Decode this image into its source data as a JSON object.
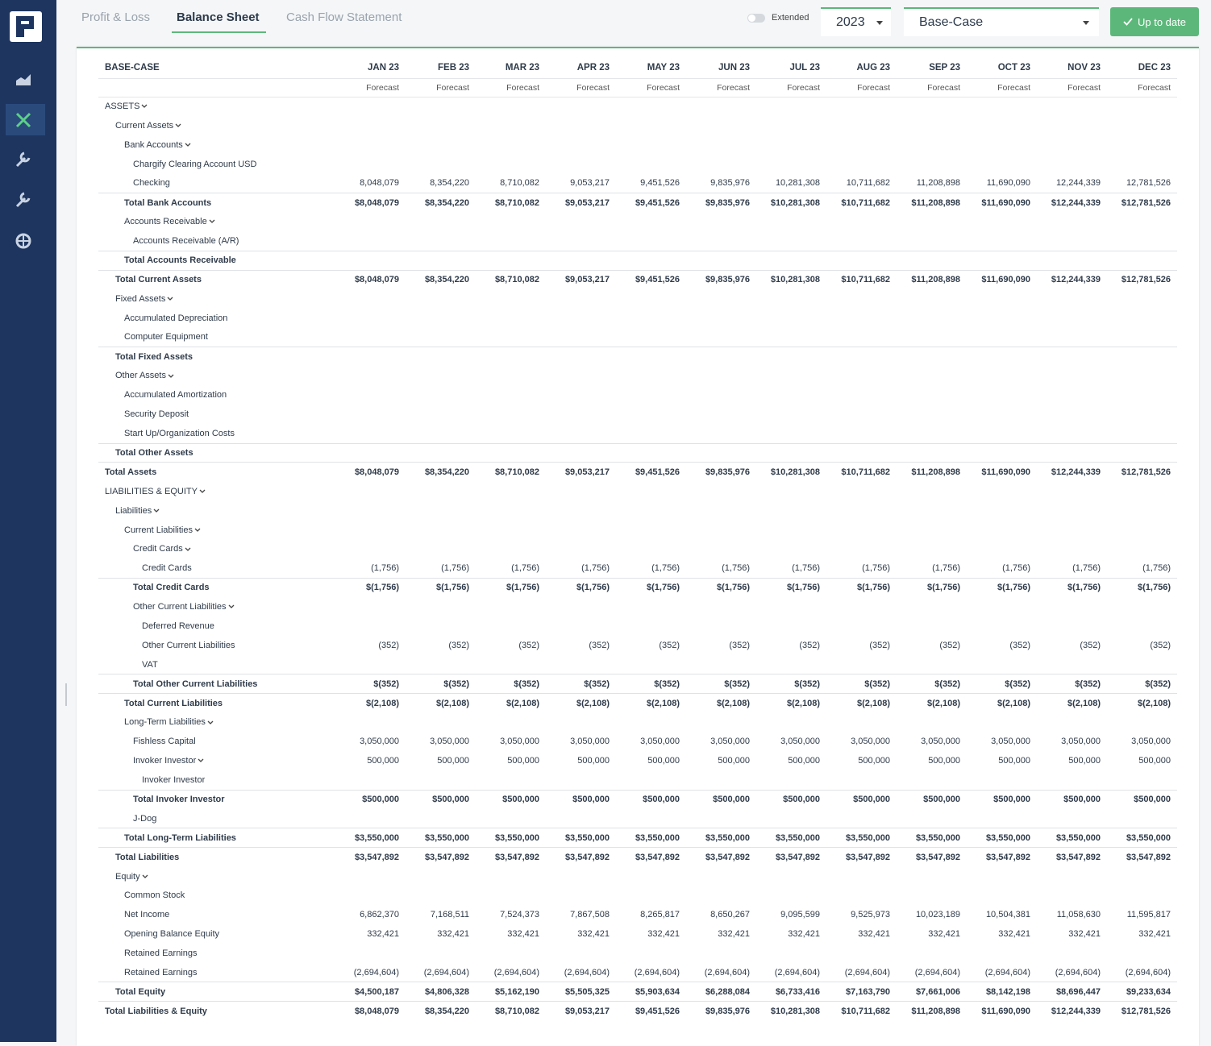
{
  "toolbar": {
    "tabs": [
      "Profit & Loss",
      "Balance Sheet",
      "Cash Flow Statement"
    ],
    "toggle_label": "Extended",
    "year": "2023",
    "scenario": "Base-Case",
    "status_button": "Up to date"
  },
  "table": {
    "corner": "BASE-CASE",
    "months": [
      "JAN 23",
      "FEB 23",
      "MAR 23",
      "APR 23",
      "MAY 23",
      "JUN 23",
      "JUL 23",
      "AUG 23",
      "SEP 23",
      "OCT 23",
      "NOV 23",
      "DEC 23"
    ],
    "subheads": [
      "Forecast",
      "Forecast",
      "Forecast",
      "Forecast",
      "Forecast",
      "Forecast",
      "Forecast",
      "Forecast",
      "Forecast",
      "Forecast",
      "Forecast",
      "Forecast"
    ],
    "rows": [
      {
        "label": "ASSETS",
        "rows": [
          {
            "label": "Current Assets",
            "rows": [
              {
                "label": "Bank Accounts",
                "rows": [
                  {
                    "label": "Chargify Clearing Account USD"
                  },
                  {
                    "label": "Checking",
                    "values": [
                      "8,048,079",
                      "8,354,220",
                      "8,710,082",
                      "9,053,217",
                      "9,451,526",
                      "9,835,976",
                      "10,281,308",
                      "10,711,682",
                      "11,208,898",
                      "11,690,090",
                      "12,244,339",
                      "12,781,526"
                    ]
                  }
                ],
                "total": {
                  "label": "Total Bank Accounts",
                  "values": [
                    "$8,048,079",
                    "$8,354,220",
                    "$8,710,082",
                    "$9,053,217",
                    "$9,451,526",
                    "$9,835,976",
                    "$10,281,308",
                    "$10,711,682",
                    "$11,208,898",
                    "$11,690,090",
                    "$12,244,339",
                    "$12,781,526"
                  ]
                }
              },
              {
                "label": "Accounts Receivable",
                "rows": [
                  {
                    "label": "Accounts Receivable (A/R)"
                  }
                ],
                "total": {
                  "label": "Total Accounts Receivable"
                }
              }
            ],
            "total": {
              "label": "Total Current Assets",
              "values": [
                "$8,048,079",
                "$8,354,220",
                "$8,710,082",
                "$9,053,217",
                "$9,451,526",
                "$9,835,976",
                "$10,281,308",
                "$10,711,682",
                "$11,208,898",
                "$11,690,090",
                "$12,244,339",
                "$12,781,526"
              ]
            }
          },
          {
            "label": "Fixed Assets",
            "rows": [
              {
                "label": "Accumulated Depreciation"
              },
              {
                "label": "Computer Equipment"
              }
            ],
            "total": {
              "label": "Total Fixed Assets"
            }
          },
          {
            "label": "Other Assets",
            "rows": [
              {
                "label": "Accumulated Amortization"
              },
              {
                "label": "Security Deposit"
              },
              {
                "label": "Start Up/Organization Costs"
              }
            ],
            "total": {
              "label": "Total Other Assets"
            }
          }
        ],
        "total": {
          "label": "Total Assets",
          "values": [
            "$8,048,079",
            "$8,354,220",
            "$8,710,082",
            "$9,053,217",
            "$9,451,526",
            "$9,835,976",
            "$10,281,308",
            "$10,711,682",
            "$11,208,898",
            "$11,690,090",
            "$12,244,339",
            "$12,781,526"
          ]
        }
      },
      {
        "label": "LIABILITIES & EQUITY",
        "rows": [
          {
            "label": "Liabilities",
            "rows": [
              {
                "label": "Current Liabilities",
                "rows": [
                  {
                    "label": "Credit Cards",
                    "rows": [
                      {
                        "label": "Credit Cards",
                        "values": [
                          "(1,756)",
                          "(1,756)",
                          "(1,756)",
                          "(1,756)",
                          "(1,756)",
                          "(1,756)",
                          "(1,756)",
                          "(1,756)",
                          "(1,756)",
                          "(1,756)",
                          "(1,756)",
                          "(1,756)"
                        ]
                      }
                    ],
                    "total": {
                      "label": "Total Credit Cards",
                      "values": [
                        "$(1,756)",
                        "$(1,756)",
                        "$(1,756)",
                        "$(1,756)",
                        "$(1,756)",
                        "$(1,756)",
                        "$(1,756)",
                        "$(1,756)",
                        "$(1,756)",
                        "$(1,756)",
                        "$(1,756)",
                        "$(1,756)"
                      ]
                    }
                  },
                  {
                    "label": "Other Current Liabilities",
                    "rows": [
                      {
                        "label": "Deferred Revenue"
                      },
                      {
                        "label": "Other Current Liabilities",
                        "values": [
                          "(352)",
                          "(352)",
                          "(352)",
                          "(352)",
                          "(352)",
                          "(352)",
                          "(352)",
                          "(352)",
                          "(352)",
                          "(352)",
                          "(352)",
                          "(352)"
                        ]
                      },
                      {
                        "label": "VAT"
                      }
                    ],
                    "total": {
                      "label": "Total Other Current Liabilities",
                      "values": [
                        "$(352)",
                        "$(352)",
                        "$(352)",
                        "$(352)",
                        "$(352)",
                        "$(352)",
                        "$(352)",
                        "$(352)",
                        "$(352)",
                        "$(352)",
                        "$(352)",
                        "$(352)"
                      ]
                    }
                  }
                ],
                "total": {
                  "label": "Total Current Liabilities",
                  "values": [
                    "$(2,108)",
                    "$(2,108)",
                    "$(2,108)",
                    "$(2,108)",
                    "$(2,108)",
                    "$(2,108)",
                    "$(2,108)",
                    "$(2,108)",
                    "$(2,108)",
                    "$(2,108)",
                    "$(2,108)",
                    "$(2,108)"
                  ]
                }
              },
              {
                "label": "Long-Term Liabilities",
                "rows": [
                  {
                    "label": "Fishless Capital",
                    "values": [
                      "3,050,000",
                      "3,050,000",
                      "3,050,000",
                      "3,050,000",
                      "3,050,000",
                      "3,050,000",
                      "3,050,000",
                      "3,050,000",
                      "3,050,000",
                      "3,050,000",
                      "3,050,000",
                      "3,050,000"
                    ]
                  },
                  {
                    "label": "Invoker Investor",
                    "values": [
                      "500,000",
                      "500,000",
                      "500,000",
                      "500,000",
                      "500,000",
                      "500,000",
                      "500,000",
                      "500,000",
                      "500,000",
                      "500,000",
                      "500,000",
                      "500,000"
                    ],
                    "rows": [
                      {
                        "label": "Invoker Investor"
                      }
                    ],
                    "total": {
                      "label": "Total Invoker Investor",
                      "values": [
                        "$500,000",
                        "$500,000",
                        "$500,000",
                        "$500,000",
                        "$500,000",
                        "$500,000",
                        "$500,000",
                        "$500,000",
                        "$500,000",
                        "$500,000",
                        "$500,000",
                        "$500,000"
                      ]
                    }
                  },
                  {
                    "label": "J-Dog"
                  }
                ],
                "total": {
                  "label": "Total Long-Term Liabilities",
                  "values": [
                    "$3,550,000",
                    "$3,550,000",
                    "$3,550,000",
                    "$3,550,000",
                    "$3,550,000",
                    "$3,550,000",
                    "$3,550,000",
                    "$3,550,000",
                    "$3,550,000",
                    "$3,550,000",
                    "$3,550,000",
                    "$3,550,000"
                  ]
                }
              }
            ],
            "total": {
              "label": "Total Liabilities",
              "values": [
                "$3,547,892",
                "$3,547,892",
                "$3,547,892",
                "$3,547,892",
                "$3,547,892",
                "$3,547,892",
                "$3,547,892",
                "$3,547,892",
                "$3,547,892",
                "$3,547,892",
                "$3,547,892",
                "$3,547,892"
              ]
            }
          },
          {
            "label": "Equity",
            "rows": [
              {
                "label": "Common Stock"
              },
              {
                "label": "Net Income",
                "values": [
                  "6,862,370",
                  "7,168,511",
                  "7,524,373",
                  "7,867,508",
                  "8,265,817",
                  "8,650,267",
                  "9,095,599",
                  "9,525,973",
                  "10,023,189",
                  "10,504,381",
                  "11,058,630",
                  "11,595,817"
                ]
              },
              {
                "label": "Opening Balance Equity",
                "values": [
                  "332,421",
                  "332,421",
                  "332,421",
                  "332,421",
                  "332,421",
                  "332,421",
                  "332,421",
                  "332,421",
                  "332,421",
                  "332,421",
                  "332,421",
                  "332,421"
                ]
              },
              {
                "label": "Retained Earnings"
              },
              {
                "label": "Retained Earnings",
                "values": [
                  "(2,694,604)",
                  "(2,694,604)",
                  "(2,694,604)",
                  "(2,694,604)",
                  "(2,694,604)",
                  "(2,694,604)",
                  "(2,694,604)",
                  "(2,694,604)",
                  "(2,694,604)",
                  "(2,694,604)",
                  "(2,694,604)",
                  "(2,694,604)"
                ]
              }
            ],
            "total": {
              "label": "Total Equity",
              "values": [
                "$4,500,187",
                "$4,806,328",
                "$5,162,190",
                "$5,505,325",
                "$5,903,634",
                "$6,288,084",
                "$6,733,416",
                "$7,163,790",
                "$7,661,006",
                "$8,142,198",
                "$8,696,447",
                "$9,233,634"
              ]
            }
          }
        ],
        "total": {
          "label": "Total Liabilities & Equity",
          "values": [
            "$8,048,079",
            "$8,354,220",
            "$8,710,082",
            "$9,053,217",
            "$9,451,526",
            "$9,835,976",
            "$10,281,308",
            "$10,711,682",
            "$11,208,898",
            "$11,690,090",
            "$12,244,339",
            "$12,781,526"
          ]
        }
      }
    ]
  }
}
